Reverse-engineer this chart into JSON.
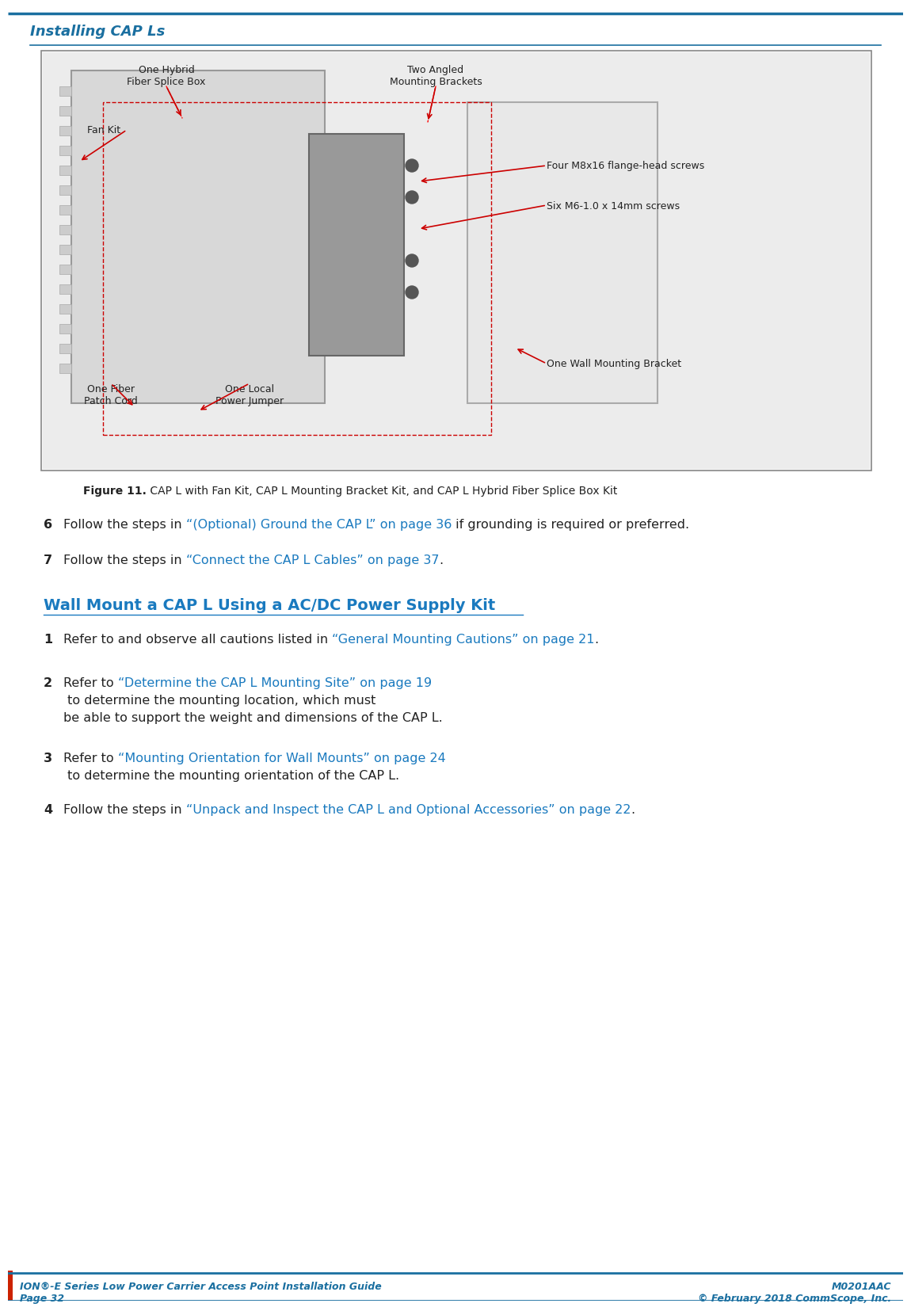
{
  "page_title": "Installing CAP Ls",
  "header_color": "#1a6fa0",
  "header_line_color": "#1a6fa0",
  "background_color": "#ffffff",
  "red_accent": "#cc0000",
  "figure_caption_bold": "Figure 11.",
  "figure_caption_normal": " CAP L with Fan Kit, CAP L Mounting Bracket Kit, and CAP L Hybrid Fiber Splice Box Kit",
  "step6_num": "6",
  "step6_text_before": "Follow the steps in ",
  "step6_link": "“(Optional) Ground the CAP L” on page 36",
  "step6_text_after": " if grounding is required or preferred.",
  "step7_num": "7",
  "step7_text_before": "Follow the steps in ",
  "step7_link": "“Connect the CAP L Cables” on page 37",
  "step7_text_after": ".",
  "section_title": "Wall Mount a CAP L Using a AC/DC Power Supply Kit",
  "item1_num": "1",
  "item1_text_before": "Refer to and observe all cautions listed in ",
  "item1_link": "“General Mounting Cautions” on page 21",
  "item1_text_after": ".",
  "item2_num": "2",
  "item2_text_before": "Refer to ",
  "item2_link": "“Determine the CAP L Mounting Site” on page 19",
  "item2_text_after": " to determine the mounting location, which must be able to support the weight and dimensions of the CAP L.",
  "item3_num": "3",
  "item3_text_before": "Refer to ",
  "item3_link": "“Mounting Orientation for Wall Mounts” on page 24",
  "item3_text_after": " to determine the mounting orientation of the CAP L.",
  "item4_num": "4",
  "item4_text_before": "Follow the steps in ",
  "item4_link": "“Unpack and Inspect the CAP L and Optional Accessories” on page 22",
  "item4_text_after": ".",
  "footer_left_line1": "ION®-E Series Low Power Carrier Access Point Installation Guide",
  "footer_left_line2": "Page 32",
  "footer_right_line1": "M0201AAC",
  "footer_right_line2": "© February 2018 CommScope, Inc.",
  "link_color": "#1a7abf",
  "text_color": "#000000",
  "footer_color": "#1a6fa0",
  "image_labels": {
    "one_hybrid": "One Hybrid\nFiber Splice Box",
    "two_angled": "Two Angled\nMounting Brackets",
    "fan_kit": "Fan Kit",
    "four_m8": "Four M8x16 flange-head screws",
    "six_m6": "Six M6-1.0 x 14mm screws",
    "one_fiber": "One Fiber\nPatch Cord",
    "one_local": "One Local\nPower Jumper",
    "one_wall": "One Wall Mounting Bracket"
  }
}
